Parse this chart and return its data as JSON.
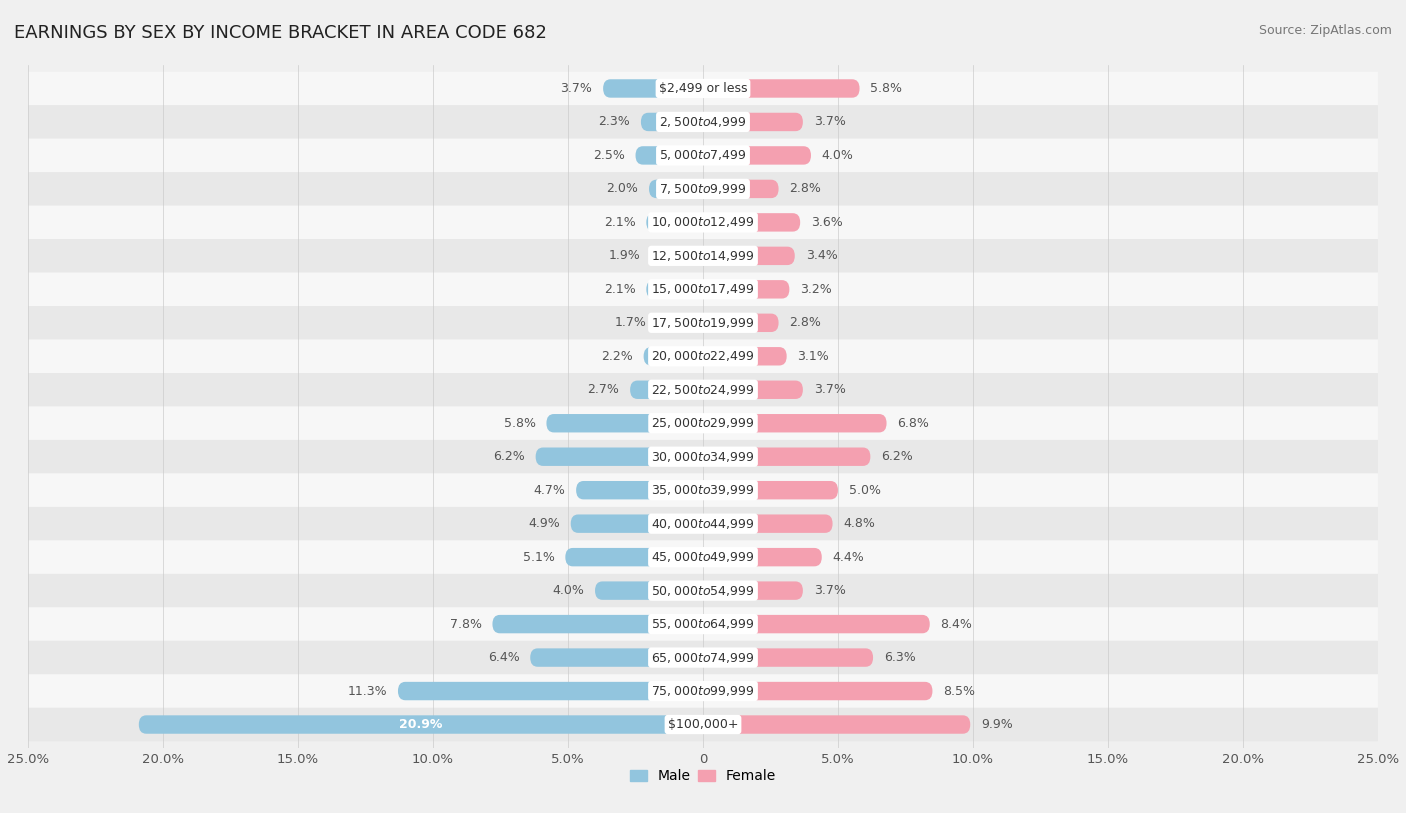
{
  "title": "EARNINGS BY SEX BY INCOME BRACKET IN AREA CODE 682",
  "source": "Source: ZipAtlas.com",
  "categories": [
    "$2,499 or less",
    "$2,500 to $4,999",
    "$5,000 to $7,499",
    "$7,500 to $9,999",
    "$10,000 to $12,499",
    "$12,500 to $14,999",
    "$15,000 to $17,499",
    "$17,500 to $19,999",
    "$20,000 to $22,499",
    "$22,500 to $24,999",
    "$25,000 to $29,999",
    "$30,000 to $34,999",
    "$35,000 to $39,999",
    "$40,000 to $44,999",
    "$45,000 to $49,999",
    "$50,000 to $54,999",
    "$55,000 to $64,999",
    "$65,000 to $74,999",
    "$75,000 to $99,999",
    "$100,000+"
  ],
  "male_values": [
    3.7,
    2.3,
    2.5,
    2.0,
    2.1,
    1.9,
    2.1,
    1.7,
    2.2,
    2.7,
    5.8,
    6.2,
    4.7,
    4.9,
    5.1,
    4.0,
    7.8,
    6.4,
    11.3,
    20.9
  ],
  "female_values": [
    5.8,
    3.7,
    4.0,
    2.8,
    3.6,
    3.4,
    3.2,
    2.8,
    3.1,
    3.7,
    6.8,
    6.2,
    5.0,
    4.8,
    4.4,
    3.7,
    8.4,
    6.3,
    8.5,
    9.9
  ],
  "male_color": "#92c5de",
  "female_color": "#f4a0b0",
  "male_label": "Male",
  "female_label": "Female",
  "xlim": 25.0,
  "background_color": "#f0f0f0",
  "row_color_even": "#f7f7f7",
  "row_color_odd": "#e8e8e8",
  "title_fontsize": 13,
  "source_fontsize": 9,
  "tick_fontsize": 9.5,
  "label_fontsize": 9,
  "value_fontsize": 9
}
